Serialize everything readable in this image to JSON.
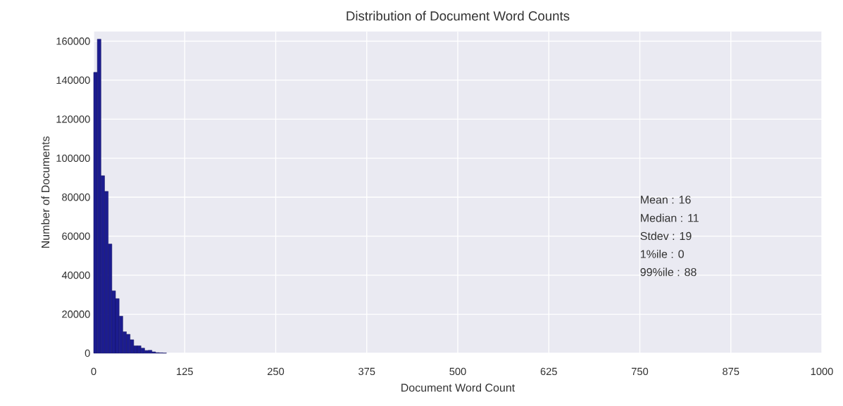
{
  "chart_data": {
    "type": "histogram",
    "title": "Distribution of Document Word Counts",
    "xlabel": "Document Word Count",
    "ylabel": "Number of Documents",
    "bins": [
      0,
      5,
      10,
      15,
      20,
      25,
      30,
      35,
      40,
      45,
      50,
      55,
      60,
      65,
      70,
      75,
      80,
      85,
      90,
      95,
      100
    ],
    "values": [
      144000,
      161000,
      91000,
      83000,
      56000,
      32000,
      28000,
      19000,
      11000,
      9700,
      6900,
      3800,
      3800,
      2600,
      1400,
      1500,
      700,
      300,
      200,
      100
    ],
    "color": "#1c1c8f",
    "xlim": [
      0,
      1000
    ],
    "xticks": [
      0,
      125,
      250,
      375,
      500,
      625,
      750,
      875,
      1000
    ],
    "ylim": [
      0,
      165000
    ],
    "yticks": [
      0,
      20000,
      40000,
      60000,
      80000,
      100000,
      120000,
      140000,
      160000
    ],
    "grid": true,
    "annotations": [
      "Mean   : 16",
      "Median : 11",
      "Stdev   : 19",
      "1%ile    : 0",
      "99%ile  : 88"
    ]
  }
}
